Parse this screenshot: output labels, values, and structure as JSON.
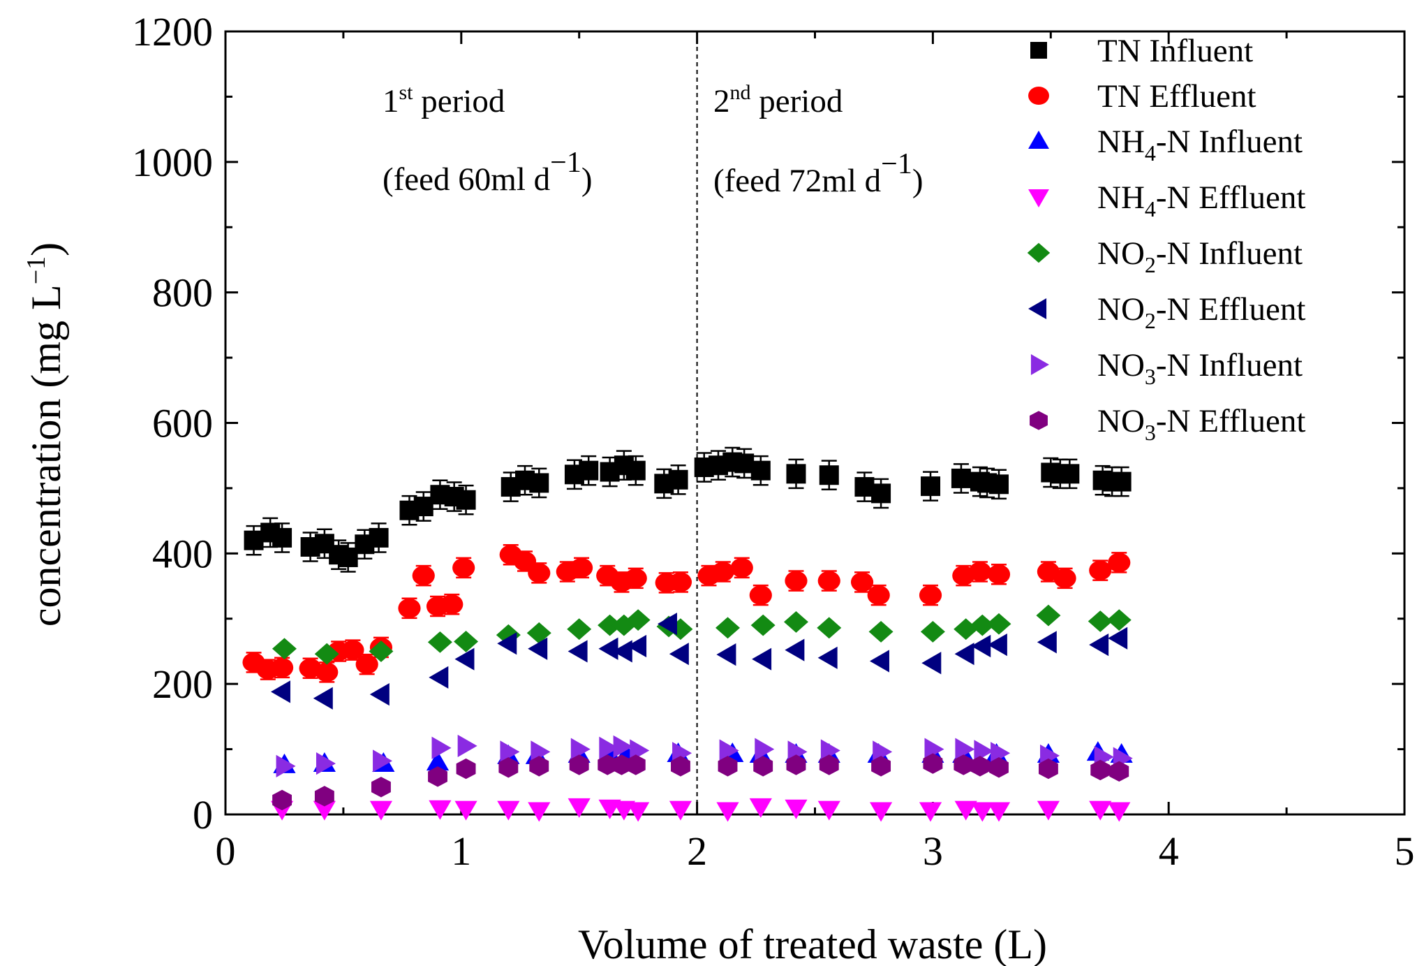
{
  "chart_data": {
    "type": "scatter",
    "title": "",
    "xlabel": "Volume of treated waste (L)",
    "ylabel_main": "concentration (mg L",
    "ylabel_sup": "−1",
    "ylabel_close": ")",
    "xlim": [
      0,
      5
    ],
    "ylim": [
      0,
      1200
    ],
    "xticks": [
      0,
      1,
      2,
      3,
      4,
      5
    ],
    "yticks": [
      0,
      200,
      400,
      600,
      800,
      1000,
      1200
    ],
    "divider_x": 2.0,
    "annotations": {
      "p1_num": "1",
      "p1_sup": "st",
      "p1_rest": " period",
      "p1_feed": "(feed 60ml d",
      "p1_feed_sup": "−1",
      "p1_feed_close": ")",
      "p2_num": "2",
      "p2_sup": "nd",
      "p2_rest": " period",
      "p2_feed": "(feed 72ml d",
      "p2_feed_sup": "−1",
      "p2_feed_close": ")"
    },
    "legend_position": "top-right",
    "series": [
      {
        "name": "TN Influent",
        "name_main": "TN Influent",
        "name_sub": "",
        "name_rest": "",
        "marker": "square",
        "color": "#000000",
        "error": 22,
        "x": [
          0.12,
          0.19,
          0.24,
          0.36,
          0.42,
          0.48,
          0.52,
          0.59,
          0.65,
          0.78,
          0.84,
          0.91,
          0.97,
          1.02,
          1.21,
          1.27,
          1.33,
          1.48,
          1.54,
          1.63,
          1.69,
          1.74,
          1.86,
          1.92,
          2.03,
          2.09,
          2.15,
          2.2,
          2.27,
          2.42,
          2.56,
          2.71,
          2.78,
          2.99,
          3.12,
          3.2,
          3.23,
          3.28,
          3.5,
          3.54,
          3.58,
          3.72,
          3.76,
          3.8
        ],
        "y": [
          420,
          432,
          424,
          410,
          415,
          398,
          394,
          414,
          424,
          466,
          472,
          490,
          487,
          482,
          502,
          512,
          508,
          521,
          527,
          525,
          535,
          527,
          507,
          513,
          532,
          535,
          540,
          538,
          527,
          522,
          520,
          502,
          492,
          503,
          515,
          510,
          508,
          506,
          524,
          522,
          522,
          512,
          510,
          510
        ]
      },
      {
        "name": "TN Effluent",
        "name_main": "TN Effluent",
        "name_sub": "",
        "name_rest": "",
        "marker": "circle",
        "color": "#ff0000",
        "error": 15,
        "x": [
          0.12,
          0.18,
          0.24,
          0.36,
          0.43,
          0.48,
          0.54,
          0.6,
          0.66,
          0.78,
          0.84,
          0.9,
          0.96,
          1.01,
          1.21,
          1.27,
          1.33,
          1.45,
          1.51,
          1.62,
          1.68,
          1.74,
          1.87,
          1.93,
          2.05,
          2.11,
          2.19,
          2.27,
          2.42,
          2.56,
          2.7,
          2.77,
          2.99,
          3.13,
          3.2,
          3.28,
          3.49,
          3.56,
          3.71,
          3.79
        ],
        "y": [
          233,
          222,
          225,
          224,
          218,
          250,
          252,
          230,
          256,
          316,
          366,
          319,
          322,
          378,
          398,
          388,
          370,
          372,
          378,
          366,
          356,
          362,
          355,
          356,
          366,
          372,
          378,
          336,
          358,
          358,
          356,
          336,
          336,
          366,
          372,
          368,
          372,
          362,
          374,
          386
        ]
      },
      {
        "name": "NH4-N Influent",
        "name_main": "NH",
        "name_sub": "4",
        "name_rest": "-N Influent",
        "marker": "triangle-up",
        "color": "#0000ff",
        "error": 0,
        "x": [
          0.25,
          0.42,
          0.67,
          0.9,
          1.2,
          1.32,
          1.5,
          1.63,
          1.7,
          1.92,
          2.15,
          2.27,
          2.42,
          2.56,
          2.77,
          3.0,
          3.13,
          3.27,
          3.49,
          3.7,
          3.8
        ],
        "y": [
          76,
          78,
          78,
          80,
          90,
          90,
          92,
          92,
          92,
          93,
          93,
          92,
          92,
          92,
          92,
          92,
          92,
          92,
          92,
          95,
          92
        ]
      },
      {
        "name": "NH4-N Effluent",
        "name_main": "NH",
        "name_sub": "4",
        "name_rest": "-N Effluent",
        "marker": "triangle-down",
        "color": "#ff00ff",
        "error": 0,
        "x": [
          0.24,
          0.42,
          0.66,
          0.91,
          1.02,
          1.2,
          1.33,
          1.5,
          1.63,
          1.69,
          1.75,
          1.93,
          2.13,
          2.27,
          2.42,
          2.56,
          2.78,
          2.99,
          3.14,
          3.21,
          3.28,
          3.49,
          3.71,
          3.79
        ],
        "y": [
          8,
          8,
          8,
          9,
          8,
          8,
          6,
          12,
          10,
          8,
          6,
          8,
          6,
          12,
          10,
          8,
          6,
          6,
          8,
          6,
          6,
          8,
          8,
          6
        ]
      },
      {
        "name": "NO2-N Influent",
        "name_main": "NO",
        "name_sub": "2",
        "name_rest": "-N Influent",
        "marker": "diamond",
        "color": "#138a13",
        "error": 0,
        "x": [
          0.25,
          0.43,
          0.66,
          0.91,
          1.02,
          1.2,
          1.33,
          1.5,
          1.63,
          1.69,
          1.75,
          1.88,
          1.93,
          2.13,
          2.28,
          2.42,
          2.56,
          2.78,
          3.0,
          3.14,
          3.21,
          3.28,
          3.49,
          3.71,
          3.79
        ],
        "y": [
          254,
          246,
          250,
          264,
          265,
          275,
          278,
          284,
          290,
          290,
          298,
          288,
          284,
          286,
          290,
          295,
          286,
          280,
          280,
          284,
          290,
          292,
          305,
          296,
          298
        ]
      },
      {
        "name": "NO2-N Effluent",
        "name_main": "NO",
        "name_sub": "2",
        "name_rest": "-N Effluent",
        "marker": "triangle-left",
        "color": "#000080",
        "error": 0,
        "x": [
          0.24,
          0.42,
          0.66,
          0.91,
          1.02,
          1.2,
          1.33,
          1.5,
          1.63,
          1.69,
          1.75,
          1.88,
          1.93,
          2.13,
          2.28,
          2.42,
          2.56,
          2.78,
          3.0,
          3.14,
          3.21,
          3.28,
          3.49,
          3.71,
          3.79
        ],
        "y": [
          188,
          178,
          184,
          210,
          238,
          262,
          254,
          250,
          254,
          250,
          258,
          292,
          246,
          245,
          238,
          252,
          240,
          235,
          232,
          246,
          258,
          260,
          264,
          260,
          270
        ]
      },
      {
        "name": "NO3-N Influent",
        "name_main": "NO",
        "name_sub": "3",
        "name_rest": "-N Influent",
        "marker": "triangle-right",
        "color": "#8a2be2",
        "error": 0,
        "x": [
          0.25,
          0.42,
          0.66,
          0.91,
          1.02,
          1.2,
          1.33,
          1.5,
          1.62,
          1.68,
          1.75,
          1.93,
          2.13,
          2.28,
          2.42,
          2.56,
          2.78,
          3.0,
          3.13,
          3.21,
          3.28,
          3.49,
          3.72,
          3.8
        ],
        "y": [
          74,
          78,
          82,
          102,
          105,
          96,
          96,
          100,
          102,
          104,
          98,
          94,
          98,
          100,
          96,
          98,
          96,
          100,
          100,
          97,
          94,
          90,
          88,
          86
        ]
      },
      {
        "name": "NO3-N Effluent",
        "name_main": "NO",
        "name_sub": "3",
        "name_rest": "-N Effluent",
        "marker": "hexagon",
        "color": "#800080",
        "error": 0,
        "x": [
          0.24,
          0.42,
          0.66,
          0.9,
          1.02,
          1.2,
          1.33,
          1.5,
          1.62,
          1.68,
          1.74,
          1.93,
          2.13,
          2.28,
          2.42,
          2.56,
          2.78,
          3.0,
          3.13,
          3.2,
          3.28,
          3.49,
          3.71,
          3.79
        ],
        "y": [
          22,
          28,
          42,
          58,
          70,
          72,
          74,
          76,
          76,
          76,
          76,
          74,
          74,
          74,
          76,
          76,
          74,
          78,
          76,
          74,
          72,
          70,
          68,
          66
        ]
      }
    ]
  }
}
